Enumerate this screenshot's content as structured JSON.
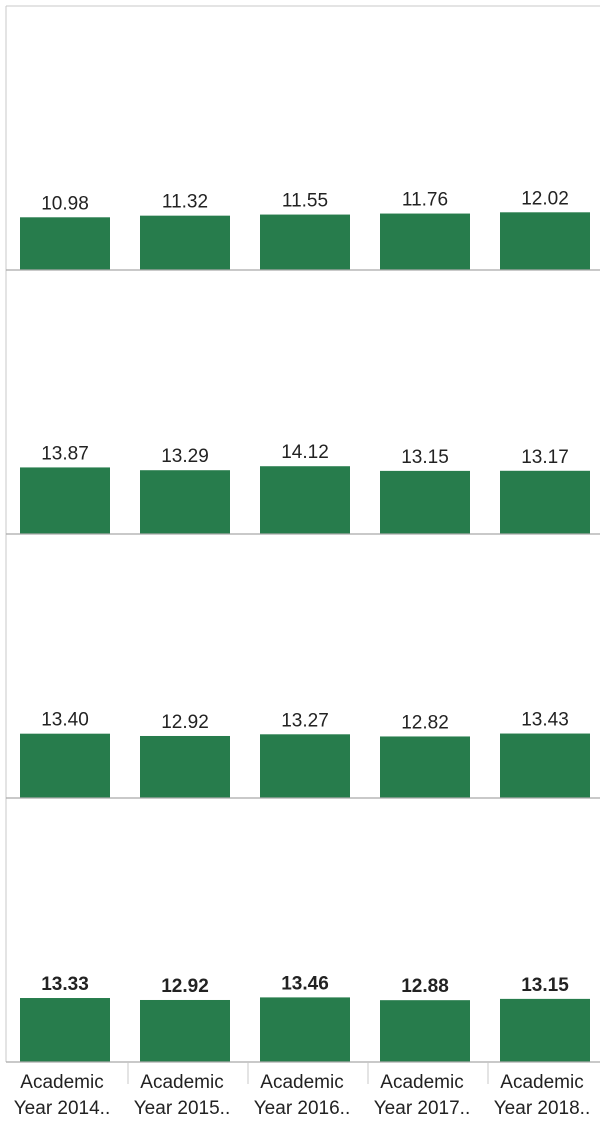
{
  "chart_data": {
    "type": "bar",
    "categories": [
      [
        "Academic",
        "Year 2014.."
      ],
      [
        "Academic",
        "Year 2015.."
      ],
      [
        "Academic",
        "Year 2016.."
      ],
      [
        "Academic",
        "Year 2017.."
      ],
      [
        "Academic",
        "Year 2018.."
      ]
    ],
    "panels": [
      {
        "values": [
          10.98,
          11.32,
          11.55,
          11.76,
          12.02
        ],
        "labels": [
          "10.98",
          "11.32",
          "11.55",
          "11.76",
          "12.02"
        ],
        "bold": false
      },
      {
        "values": [
          13.87,
          13.29,
          14.12,
          13.15,
          13.17
        ],
        "labels": [
          "13.87",
          "13.29",
          "14.12",
          "13.15",
          "13.17"
        ],
        "bold": false
      },
      {
        "values": [
          13.4,
          12.92,
          13.27,
          12.82,
          13.43
        ],
        "labels": [
          "13.40",
          "12.92",
          "13.27",
          "12.82",
          "13.43"
        ],
        "bold": false
      },
      {
        "values": [
          13.33,
          12.92,
          13.46,
          12.88,
          13.15
        ],
        "labels": [
          "13.33",
          "12.92",
          "13.46",
          "12.88",
          "13.15"
        ],
        "bold": true
      }
    ],
    "bar_color": "#277C4C",
    "gridline_color": "#C8C8C8",
    "text_color": "#222222",
    "grid": false
  }
}
